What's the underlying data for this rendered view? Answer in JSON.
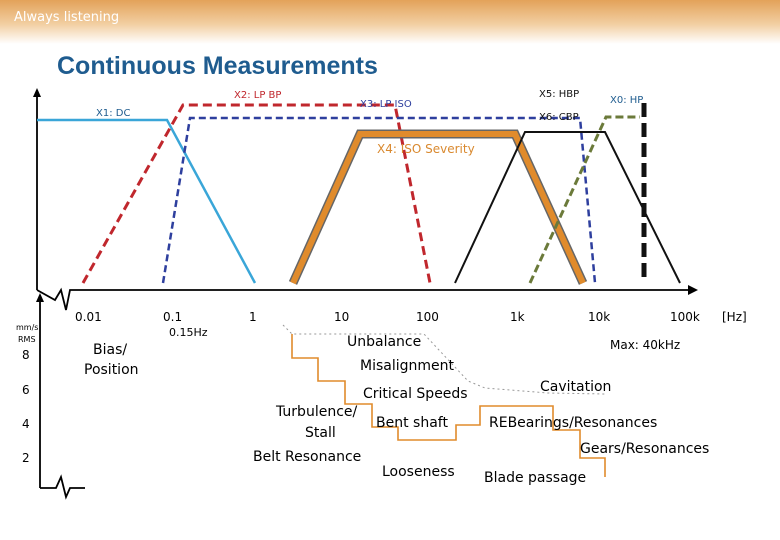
{
  "header": {
    "tagline": "Always listening",
    "title": "Continuous Measurements"
  },
  "filters": {
    "x1": "X1: DC",
    "x2": "X2: LP BP",
    "x3": "X3: LP ISO",
    "x4": "X4: ISO Severity",
    "x5": "X5: HBP",
    "x6": "X6: CBP",
    "x0": "X0: HP"
  },
  "freq_axis": {
    "ticks": [
      "0.01",
      "0.1",
      "1",
      "10",
      "100",
      "1k",
      "10k",
      "100k"
    ],
    "unit": "[Hz]",
    "note_015": "0.15Hz",
    "max_note": "Max: 40kHz"
  },
  "severity_axis": {
    "unit_line1": "mm/s",
    "unit_line2": "RMS",
    "ticks": [
      "8",
      "6",
      "4",
      "2"
    ]
  },
  "phenomena": {
    "bias_line1": "Bias/",
    "bias_line2": "Position",
    "unbalance": "Unbalance",
    "misalignment": "Misalignment",
    "critical_speeds": "Critical Speeds",
    "turbulence": "Turbulence/",
    "bent_shaft": "Bent shaft",
    "stall": "Stall",
    "belt_resonance": "Belt Resonance",
    "looseness": "Looseness",
    "cavitation": "Cavitation",
    "rebearings": "REBearings/Resonances",
    "gears": "Gears/Resonances",
    "blade_passage": "Blade passage"
  },
  "colors": {
    "title": "#1f5c8f",
    "dc_line": "#3aa6d8",
    "lp_bp": "#c0272d",
    "lp_iso": "#2e3f9e",
    "iso_severity": "#d9892f",
    "hbp": "#6b7a3a",
    "cbp": "#111111",
    "hp": "#111111"
  }
}
